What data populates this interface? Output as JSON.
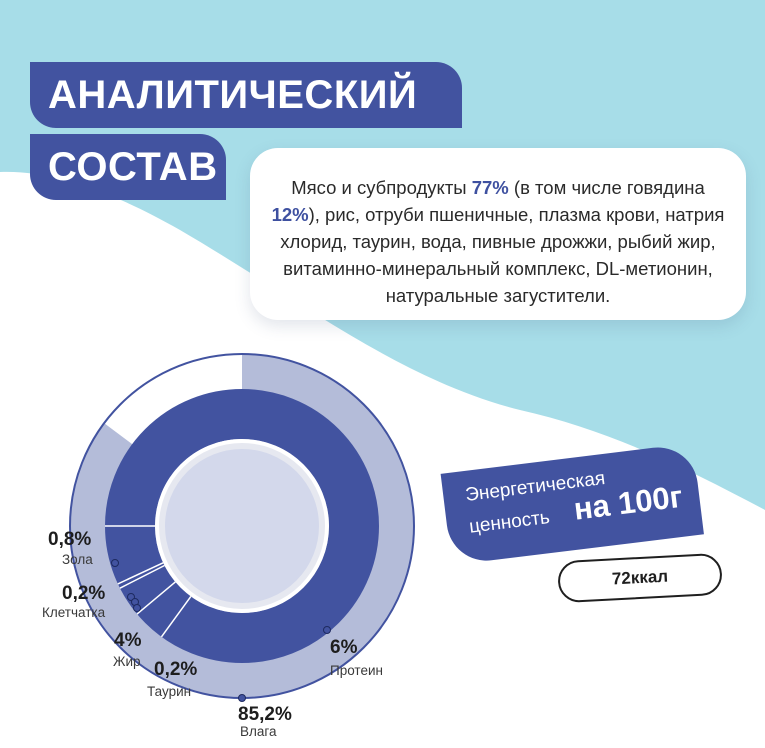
{
  "title": {
    "line1": "АНАЛИТИЧЕСКИЙ",
    "line2": "СОСТАВ"
  },
  "composition": {
    "intro": "Мясо и субпродукты ",
    "meat_pct": "77%",
    "mid": " (в том числе говядина ",
    "beef_pct": "12%",
    "rest": "), рис, отруби пшеничные, плазма крови, натрия хлорид, таурин, вода, пивные дрожжи, рыбий жир, витаминно-минеральный комплекс, DL-метионин, натуральные загустители."
  },
  "energy": {
    "line1": "Энергетическая",
    "line2": "ценность",
    "line3": "на 100г",
    "value": "72ккал"
  },
  "chart_data": {
    "type": "pie",
    "values": [
      {
        "pct": "85,2%",
        "label": "Влага",
        "value": 85.2
      },
      {
        "pct": "6%",
        "label": "Протеин",
        "value": 6
      },
      {
        "pct": "4%",
        "label": "Жир",
        "value": 4
      },
      {
        "pct": "0,8%",
        "label": "Зола",
        "value": 0.8
      },
      {
        "pct": "0,2%",
        "label": "Клетчатка",
        "value": 0.2
      },
      {
        "pct": "0,2%",
        "label": "Таурин",
        "value": 0.2
      }
    ]
  },
  "colors": {
    "primary": "#4253a0",
    "light": "#b4bcd9",
    "bg_wave": "#a7dde8"
  }
}
